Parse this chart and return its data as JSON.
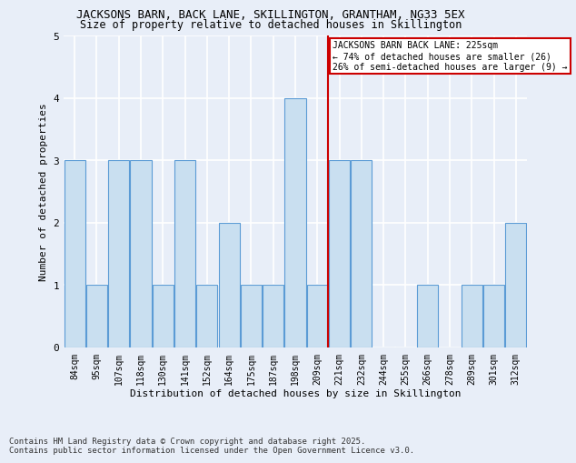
{
  "title_line1": "JACKSONS BARN, BACK LANE, SKILLINGTON, GRANTHAM, NG33 5EX",
  "title_line2": "Size of property relative to detached houses in Skillington",
  "xlabel": "Distribution of detached houses by size in Skillington",
  "ylabel": "Number of detached properties",
  "categories": [
    "84sqm",
    "95sqm",
    "107sqm",
    "118sqm",
    "130sqm",
    "141sqm",
    "152sqm",
    "164sqm",
    "175sqm",
    "187sqm",
    "198sqm",
    "209sqm",
    "221sqm",
    "232sqm",
    "244sqm",
    "255sqm",
    "266sqm",
    "278sqm",
    "289sqm",
    "301sqm",
    "312sqm"
  ],
  "values": [
    3,
    1,
    3,
    3,
    1,
    3,
    1,
    2,
    1,
    1,
    4,
    1,
    3,
    3,
    0,
    0,
    1,
    0,
    1,
    1,
    2
  ],
  "bar_color": "#c9dff0",
  "bar_edge_color": "#5b9bd5",
  "vline_index": 12,
  "vline_color": "#cc0000",
  "annotation_text_line1": "JACKSONS BARN BACK LANE: 225sqm",
  "annotation_text_line2": "← 74% of detached houses are smaller (26)",
  "annotation_text_line3": "26% of semi-detached houses are larger (9) →",
  "annotation_box_color": "#cc0000",
  "annotation_bg_color": "#ffffff",
  "ylim": [
    0,
    5
  ],
  "footnote_line1": "Contains HM Land Registry data © Crown copyright and database right 2025.",
  "footnote_line2": "Contains public sector information licensed under the Open Government Licence v3.0.",
  "bg_color": "#e8eef8",
  "grid_color": "#ffffff",
  "title_fontsize": 9,
  "subtitle_fontsize": 8.5,
  "axis_label_fontsize": 8,
  "tick_fontsize": 7,
  "annotation_fontsize": 7,
  "footnote_fontsize": 6.5
}
